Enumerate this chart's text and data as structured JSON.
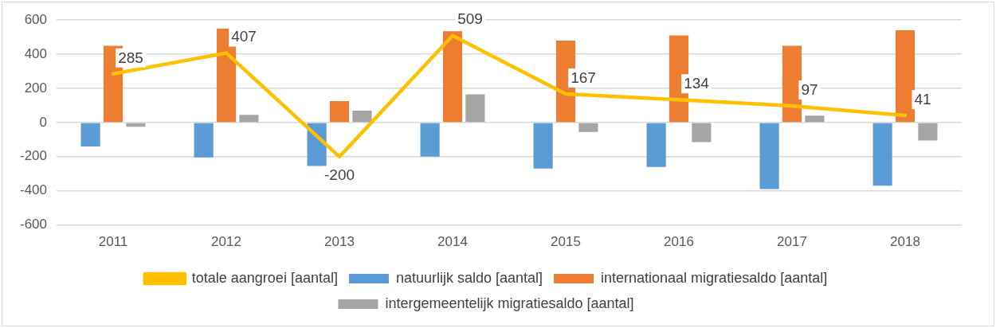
{
  "chart_data": {
    "type": "bar",
    "categories": [
      "2011",
      "2012",
      "2013",
      "2014",
      "2015",
      "2016",
      "2017",
      "2018"
    ],
    "ylim": [
      -600,
      600
    ],
    "yticks": [
      -600,
      -400,
      -200,
      0,
      200,
      400,
      600
    ],
    "grid": "y",
    "legend": "bottom",
    "series": [
      {
        "name": "natuurlijk saldo [aantal]",
        "color": "#5b9bd5",
        "values": [
          -140,
          -205,
          -255,
          -200,
          -270,
          -260,
          -390,
          -370
        ]
      },
      {
        "name": "internationaal migratiesaldo [aantal]",
        "color": "#ed7d31",
        "values": [
          450,
          550,
          125,
          535,
          480,
          510,
          450,
          540
        ]
      },
      {
        "name": "intergemeentelijk migratiesaldo [aantal]",
        "color": "#a5a5a5",
        "values": [
          -25,
          45,
          70,
          165,
          -55,
          -115,
          40,
          -105
        ]
      },
      {
        "name": "totale aangroei [aantal]",
        "type": "line",
        "color": "#ffc000",
        "marker": "none",
        "values": [
          285,
          407,
          -200,
          509,
          167,
          134,
          97,
          41
        ],
        "value_labels": [
          "285",
          "407",
          "-200",
          "509",
          "167",
          "134",
          "97",
          "41"
        ]
      }
    ]
  }
}
